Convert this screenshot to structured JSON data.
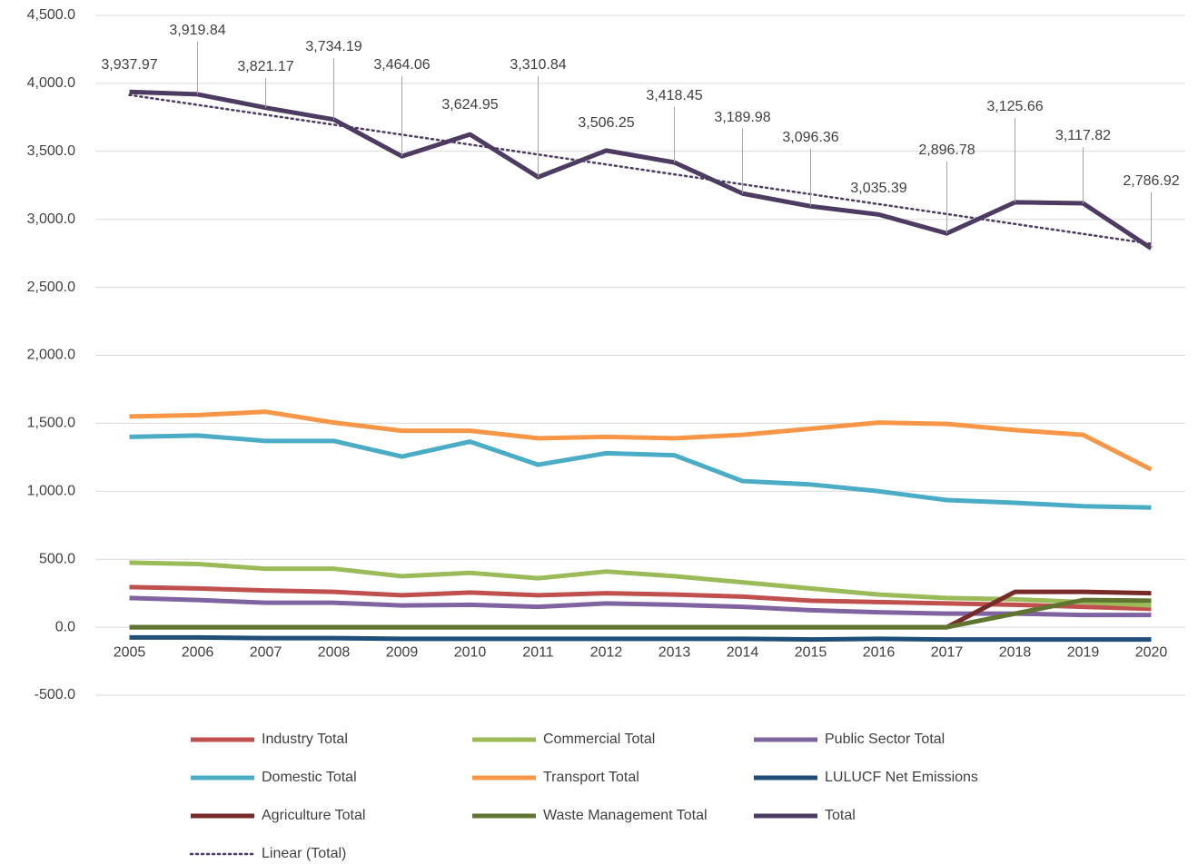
{
  "chart_data": {
    "type": "line",
    "categories": [
      "2005",
      "2006",
      "2007",
      "2008",
      "2009",
      "2010",
      "2011",
      "2012",
      "2013",
      "2014",
      "2015",
      "2016",
      "2017",
      "2018",
      "2019",
      "2020"
    ],
    "ylim": [
      -500,
      4500
    ],
    "yticks": [
      {
        "value": -500,
        "label": "-500.0"
      },
      {
        "value": 0,
        "label": "0.0"
      },
      {
        "value": 500,
        "label": "500.0"
      },
      {
        "value": 1000,
        "label": "1,000.0"
      },
      {
        "value": 1500,
        "label": "1,500.0"
      },
      {
        "value": 2000,
        "label": "2,000.0"
      },
      {
        "value": 2500,
        "label": "2,500.0"
      },
      {
        "value": 3000,
        "label": "3,000.0"
      },
      {
        "value": 3500,
        "label": "3,500.0"
      },
      {
        "value": 4000,
        "label": "4,000.0"
      },
      {
        "value": 4500,
        "label": "4,500.0"
      }
    ],
    "grid": true,
    "legend": "bottom",
    "series": [
      {
        "name": "Industry Total",
        "color": "#c0504d",
        "values": [
          295,
          285,
          270,
          260,
          235,
          255,
          235,
          250,
          240,
          225,
          195,
          185,
          175,
          165,
          150,
          135
        ]
      },
      {
        "name": "Commercial Total",
        "color": "#9bbb59",
        "values": [
          475,
          465,
          430,
          430,
          375,
          400,
          360,
          410,
          375,
          330,
          285,
          240,
          215,
          205,
          185,
          160
        ]
      },
      {
        "name": "Public Sector Total",
        "color": "#8064a2",
        "values": [
          215,
          200,
          180,
          180,
          160,
          165,
          150,
          175,
          165,
          150,
          125,
          110,
          100,
          100,
          90,
          90
        ]
      },
      {
        "name": "Domestic Total",
        "color": "#4bacc6",
        "values": [
          1400,
          1410,
          1370,
          1370,
          1255,
          1365,
          1195,
          1280,
          1265,
          1075,
          1050,
          1000,
          935,
          915,
          890,
          880
        ]
      },
      {
        "name": "Transport Total",
        "color": "#f79646",
        "values": [
          1550,
          1560,
          1585,
          1505,
          1445,
          1445,
          1390,
          1400,
          1390,
          1415,
          1460,
          1505,
          1495,
          1450,
          1415,
          1160
        ]
      },
      {
        "name": "LULUCF Net Emissions",
        "color": "#1f4e79",
        "values": [
          -75,
          -75,
          -80,
          -80,
          -85,
          -85,
          -85,
          -85,
          -85,
          -85,
          -90,
          -85,
          -90,
          -90,
          -90,
          -90
        ]
      },
      {
        "name": "Agriculture Total",
        "color": "#772c2a",
        "values": [
          0,
          0,
          0,
          0,
          0,
          0,
          0,
          0,
          0,
          0,
          0,
          0,
          0,
          260,
          260,
          250
        ]
      },
      {
        "name": "Waste Management Total",
        "color": "#5f7530",
        "values": [
          0,
          0,
          0,
          0,
          0,
          0,
          0,
          0,
          0,
          0,
          0,
          0,
          0,
          100,
          200,
          195
        ]
      },
      {
        "name": "Total",
        "color": "#4e3b62",
        "values": [
          3937.97,
          3919.84,
          3821.17,
          3734.19,
          3464.06,
          3624.95,
          3310.84,
          3506.25,
          3418.45,
          3189.98,
          3096.36,
          3035.39,
          2896.78,
          3125.66,
          3117.82,
          2786.92
        ],
        "value_labels": [
          "3,937.97",
          "3,919.84",
          "3,821.17",
          "3,734.19",
          "3,464.06",
          "3,624.95",
          "3,310.84",
          "3,506.25",
          "3,418.45",
          "3,189.98",
          "3,096.36",
          "3,035.39",
          "2,896.78",
          "3,125.66",
          "3,117.82",
          "2,786.92"
        ]
      },
      {
        "name": "Linear (Total)",
        "color": "#4e3b62",
        "dotted": true,
        "values": [
          3915,
          3842,
          3769,
          3696,
          3623,
          3550,
          3477,
          3404,
          3331,
          3258,
          3185,
          3112,
          3039,
          2966,
          2893,
          2820
        ]
      }
    ]
  }
}
